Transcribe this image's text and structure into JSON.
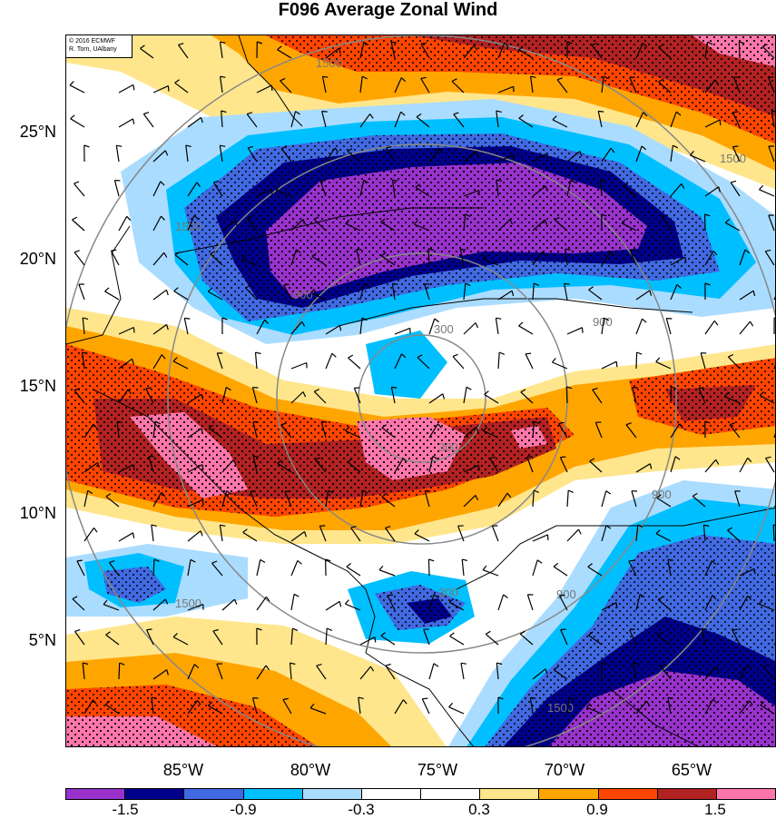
{
  "title": "F096 Average Zonal Wind",
  "copyright": {
    "line1": "© 2016 ECMWF",
    "line2": "R. Torn, UAlbany"
  },
  "lat_labels": [
    "25°N",
    "20°N",
    "15°N",
    "10°N",
    "5°N"
  ],
  "lon_labels": [
    "85°W",
    "80°W",
    "75°W",
    "70°W",
    "65°W"
  ],
  "colorbar": {
    "colors": [
      "#9932cc",
      "#00008b",
      "#4169e1",
      "#00bfff",
      "#aadcff",
      "#ffffff",
      "#ffffff",
      "#ffe68c",
      "#ffa500",
      "#ff4500",
      "#b22222",
      "#ff77aa"
    ],
    "labels": [
      "-1.5",
      "-0.9",
      "-0.3",
      "0.3",
      "0.9",
      "1.5"
    ]
  },
  "contour_labels": [
    "300",
    "900",
    "1500"
  ],
  "map_data": {
    "variable": "Average Zonal Wind",
    "forecast_hour": "F096",
    "shading_levels": [
      -1.5,
      -0.9,
      -0.3,
      0.3,
      0.9,
      1.5
    ],
    "distance_ring_values": [
      300,
      900,
      1500
    ],
    "stippling": true
  }
}
